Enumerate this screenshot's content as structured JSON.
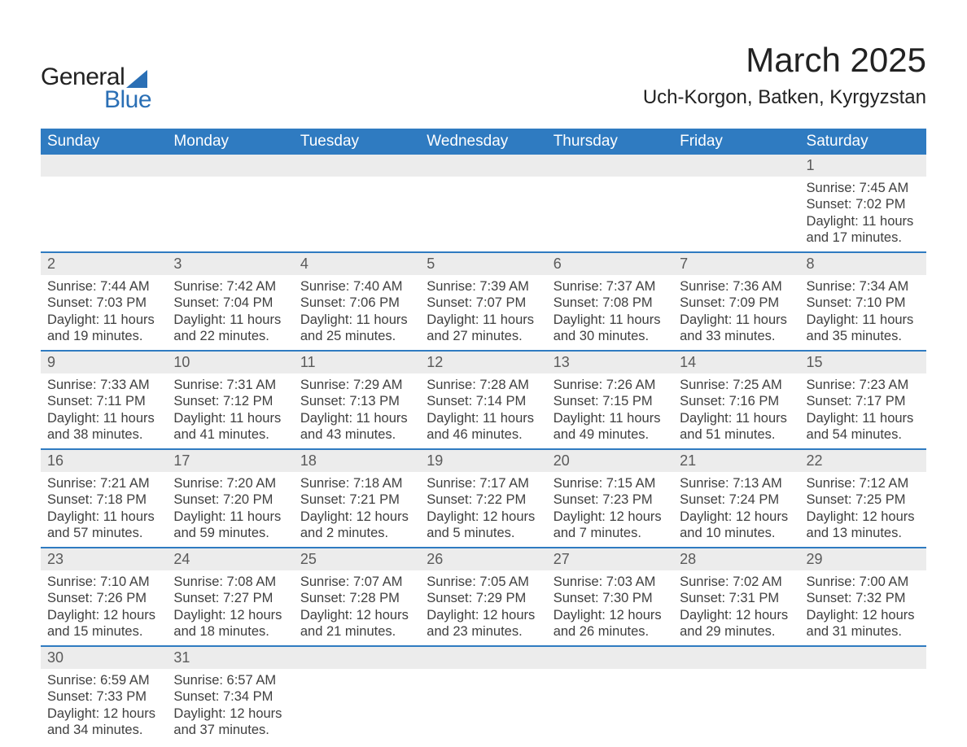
{
  "logo": {
    "general": "General",
    "blue": "Blue"
  },
  "title": "March 2025",
  "location": "Uch-Korgon, Batken, Kyrgyzstan",
  "header_bg": "#2f7bc1",
  "header_fg": "#ffffff",
  "daynum_bg": "#ececec",
  "divider_color": "#2f7bc1",
  "dayHeaders": [
    "Sunday",
    "Monday",
    "Tuesday",
    "Wednesday",
    "Thursday",
    "Friday",
    "Saturday"
  ],
  "weeks": [
    [
      null,
      null,
      null,
      null,
      null,
      null,
      {
        "n": "1",
        "sr": "Sunrise: 7:45 AM",
        "ss": "Sunset: 7:02 PM",
        "d1": "Daylight: 11 hours",
        "d2": "and 17 minutes."
      }
    ],
    [
      {
        "n": "2",
        "sr": "Sunrise: 7:44 AM",
        "ss": "Sunset: 7:03 PM",
        "d1": "Daylight: 11 hours",
        "d2": "and 19 minutes."
      },
      {
        "n": "3",
        "sr": "Sunrise: 7:42 AM",
        "ss": "Sunset: 7:04 PM",
        "d1": "Daylight: 11 hours",
        "d2": "and 22 minutes."
      },
      {
        "n": "4",
        "sr": "Sunrise: 7:40 AM",
        "ss": "Sunset: 7:06 PM",
        "d1": "Daylight: 11 hours",
        "d2": "and 25 minutes."
      },
      {
        "n": "5",
        "sr": "Sunrise: 7:39 AM",
        "ss": "Sunset: 7:07 PM",
        "d1": "Daylight: 11 hours",
        "d2": "and 27 minutes."
      },
      {
        "n": "6",
        "sr": "Sunrise: 7:37 AM",
        "ss": "Sunset: 7:08 PM",
        "d1": "Daylight: 11 hours",
        "d2": "and 30 minutes."
      },
      {
        "n": "7",
        "sr": "Sunrise: 7:36 AM",
        "ss": "Sunset: 7:09 PM",
        "d1": "Daylight: 11 hours",
        "d2": "and 33 minutes."
      },
      {
        "n": "8",
        "sr": "Sunrise: 7:34 AM",
        "ss": "Sunset: 7:10 PM",
        "d1": "Daylight: 11 hours",
        "d2": "and 35 minutes."
      }
    ],
    [
      {
        "n": "9",
        "sr": "Sunrise: 7:33 AM",
        "ss": "Sunset: 7:11 PM",
        "d1": "Daylight: 11 hours",
        "d2": "and 38 minutes."
      },
      {
        "n": "10",
        "sr": "Sunrise: 7:31 AM",
        "ss": "Sunset: 7:12 PM",
        "d1": "Daylight: 11 hours",
        "d2": "and 41 minutes."
      },
      {
        "n": "11",
        "sr": "Sunrise: 7:29 AM",
        "ss": "Sunset: 7:13 PM",
        "d1": "Daylight: 11 hours",
        "d2": "and 43 minutes."
      },
      {
        "n": "12",
        "sr": "Sunrise: 7:28 AM",
        "ss": "Sunset: 7:14 PM",
        "d1": "Daylight: 11 hours",
        "d2": "and 46 minutes."
      },
      {
        "n": "13",
        "sr": "Sunrise: 7:26 AM",
        "ss": "Sunset: 7:15 PM",
        "d1": "Daylight: 11 hours",
        "d2": "and 49 minutes."
      },
      {
        "n": "14",
        "sr": "Sunrise: 7:25 AM",
        "ss": "Sunset: 7:16 PM",
        "d1": "Daylight: 11 hours",
        "d2": "and 51 minutes."
      },
      {
        "n": "15",
        "sr": "Sunrise: 7:23 AM",
        "ss": "Sunset: 7:17 PM",
        "d1": "Daylight: 11 hours",
        "d2": "and 54 minutes."
      }
    ],
    [
      {
        "n": "16",
        "sr": "Sunrise: 7:21 AM",
        "ss": "Sunset: 7:18 PM",
        "d1": "Daylight: 11 hours",
        "d2": "and 57 minutes."
      },
      {
        "n": "17",
        "sr": "Sunrise: 7:20 AM",
        "ss": "Sunset: 7:20 PM",
        "d1": "Daylight: 11 hours",
        "d2": "and 59 minutes."
      },
      {
        "n": "18",
        "sr": "Sunrise: 7:18 AM",
        "ss": "Sunset: 7:21 PM",
        "d1": "Daylight: 12 hours",
        "d2": "and 2 minutes."
      },
      {
        "n": "19",
        "sr": "Sunrise: 7:17 AM",
        "ss": "Sunset: 7:22 PM",
        "d1": "Daylight: 12 hours",
        "d2": "and 5 minutes."
      },
      {
        "n": "20",
        "sr": "Sunrise: 7:15 AM",
        "ss": "Sunset: 7:23 PM",
        "d1": "Daylight: 12 hours",
        "d2": "and 7 minutes."
      },
      {
        "n": "21",
        "sr": "Sunrise: 7:13 AM",
        "ss": "Sunset: 7:24 PM",
        "d1": "Daylight: 12 hours",
        "d2": "and 10 minutes."
      },
      {
        "n": "22",
        "sr": "Sunrise: 7:12 AM",
        "ss": "Sunset: 7:25 PM",
        "d1": "Daylight: 12 hours",
        "d2": "and 13 minutes."
      }
    ],
    [
      {
        "n": "23",
        "sr": "Sunrise: 7:10 AM",
        "ss": "Sunset: 7:26 PM",
        "d1": "Daylight: 12 hours",
        "d2": "and 15 minutes."
      },
      {
        "n": "24",
        "sr": "Sunrise: 7:08 AM",
        "ss": "Sunset: 7:27 PM",
        "d1": "Daylight: 12 hours",
        "d2": "and 18 minutes."
      },
      {
        "n": "25",
        "sr": "Sunrise: 7:07 AM",
        "ss": "Sunset: 7:28 PM",
        "d1": "Daylight: 12 hours",
        "d2": "and 21 minutes."
      },
      {
        "n": "26",
        "sr": "Sunrise: 7:05 AM",
        "ss": "Sunset: 7:29 PM",
        "d1": "Daylight: 12 hours",
        "d2": "and 23 minutes."
      },
      {
        "n": "27",
        "sr": "Sunrise: 7:03 AM",
        "ss": "Sunset: 7:30 PM",
        "d1": "Daylight: 12 hours",
        "d2": "and 26 minutes."
      },
      {
        "n": "28",
        "sr": "Sunrise: 7:02 AM",
        "ss": "Sunset: 7:31 PM",
        "d1": "Daylight: 12 hours",
        "d2": "and 29 minutes."
      },
      {
        "n": "29",
        "sr": "Sunrise: 7:00 AM",
        "ss": "Sunset: 7:32 PM",
        "d1": "Daylight: 12 hours",
        "d2": "and 31 minutes."
      }
    ],
    [
      {
        "n": "30",
        "sr": "Sunrise: 6:59 AM",
        "ss": "Sunset: 7:33 PM",
        "d1": "Daylight: 12 hours",
        "d2": "and 34 minutes."
      },
      {
        "n": "31",
        "sr": "Sunrise: 6:57 AM",
        "ss": "Sunset: 7:34 PM",
        "d1": "Daylight: 12 hours",
        "d2": "and 37 minutes."
      },
      null,
      null,
      null,
      null,
      null
    ]
  ]
}
